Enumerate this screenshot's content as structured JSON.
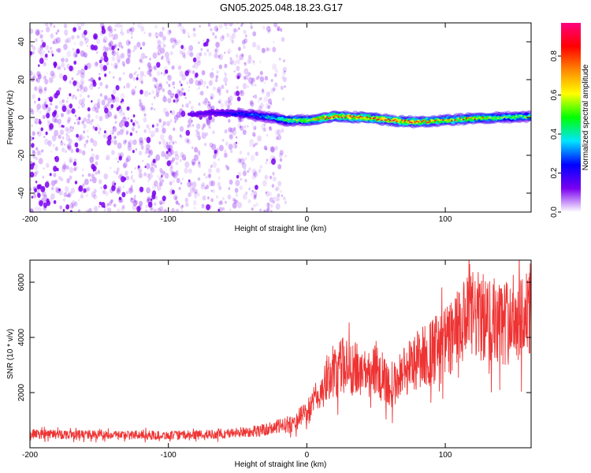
{
  "title": "GN05.2025.048.18.23.G17",
  "colors": {
    "purple": "#7b00f0",
    "snr_line": "#ee3333",
    "frame": "#000000"
  },
  "chart_data": [
    {
      "type": "heatmap",
      "xlabel": "Height of straight line (km)",
      "ylabel": "Frequency (Hz)",
      "xlim": [
        -200,
        162
      ],
      "ylim": [
        -50,
        50
      ],
      "xticks": [
        -200,
        -100,
        0,
        100
      ],
      "yticks": [
        -40,
        -20,
        0,
        20,
        40
      ],
      "colorbar": {
        "label": "Normalized spectral amplitude",
        "range": [
          0,
          0.97
        ],
        "ticks": [
          0.0,
          0.2,
          0.4,
          0.6,
          0.8
        ],
        "tick_labels": [
          "0.0",
          "0.2",
          "0.4",
          "0.6",
          "0.8"
        ],
        "colormap": [
          "#ffffff",
          "#7b00f0",
          "#0000ff",
          "#00e5ff",
          "#00ff00",
          "#ffff00",
          "#ff8800",
          "#ff0000",
          "#ff0080"
        ]
      },
      "noise_region": {
        "x": [
          -200,
          -15
        ],
        "y": [
          -50,
          50
        ],
        "amplitude": [
          0.0,
          0.15
        ]
      },
      "signal_track": [
        {
          "x": -85,
          "f": 1.5,
          "a": 0.1
        },
        {
          "x": -70,
          "f": 2.5,
          "a": 0.12
        },
        {
          "x": -50,
          "f": 2.0,
          "a": 0.2
        },
        {
          "x": -30,
          "f": 0.5,
          "a": 0.3
        },
        {
          "x": -15,
          "f": -1.5,
          "a": 0.45
        },
        {
          "x": 0,
          "f": -1.5,
          "a": 0.55
        },
        {
          "x": 20,
          "f": 0.5,
          "a": 0.75
        },
        {
          "x": 40,
          "f": 0.0,
          "a": 0.7
        },
        {
          "x": 60,
          "f": -1.5,
          "a": 0.72
        },
        {
          "x": 80,
          "f": -2.5,
          "a": 0.7
        },
        {
          "x": 100,
          "f": -1.5,
          "a": 0.6
        },
        {
          "x": 120,
          "f": -0.5,
          "a": 0.6
        },
        {
          "x": 140,
          "f": 0.0,
          "a": 0.5
        },
        {
          "x": 162,
          "f": 0.5,
          "a": 0.45
        }
      ]
    },
    {
      "type": "line",
      "xlabel": "Height of straight line (km)",
      "ylabel": "SNR (10 * v/v)",
      "xlim": [
        -200,
        162
      ],
      "ylim": [
        0,
        6800
      ],
      "xticks": [
        -200,
        -100,
        0,
        100
      ],
      "yticks": [
        2000,
        4000,
        6000
      ],
      "trend": [
        {
          "x": -200,
          "snr": 500
        },
        {
          "x": -100,
          "snr": 450
        },
        {
          "x": -60,
          "snr": 500
        },
        {
          "x": -30,
          "snr": 650
        },
        {
          "x": -10,
          "snr": 900
        },
        {
          "x": 0,
          "snr": 1300
        },
        {
          "x": 10,
          "snr": 2000
        },
        {
          "x": 20,
          "snr": 2900
        },
        {
          "x": 30,
          "snr": 3000
        },
        {
          "x": 40,
          "snr": 2700
        },
        {
          "x": 50,
          "snr": 2900
        },
        {
          "x": 60,
          "snr": 2100
        },
        {
          "x": 70,
          "snr": 2800
        },
        {
          "x": 80,
          "snr": 3200
        },
        {
          "x": 100,
          "snr": 3800
        },
        {
          "x": 120,
          "snr": 4800
        },
        {
          "x": 140,
          "snr": 4500
        },
        {
          "x": 162,
          "snr": 5000
        }
      ],
      "noise_amplitude": 0.35
    }
  ]
}
